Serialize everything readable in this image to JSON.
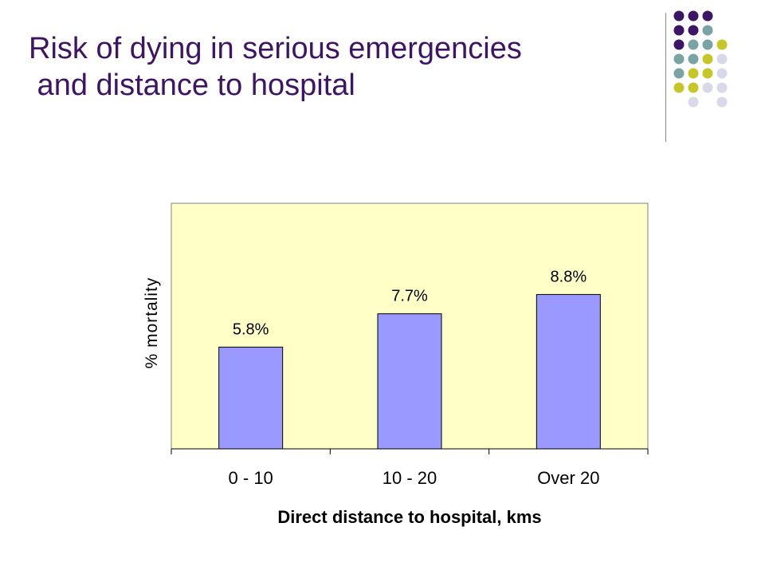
{
  "slide": {
    "title": "Risk of dying in serious emergencies\n and distance to hospital"
  },
  "decoration": {
    "dot_colors": [
      "#3d1466",
      "#7aa3a3",
      "#c6c628",
      "#d8d8e8"
    ]
  },
  "chart_data": {
    "type": "bar",
    "categories": [
      "0 - 10",
      "10 - 20",
      "Over 20"
    ],
    "values": [
      5.8,
      7.7,
      8.8
    ],
    "data_labels": [
      "5.8%",
      "7.7%",
      "8.8%"
    ],
    "title": "",
    "xlabel": "Direct distance to hospital, kms",
    "ylabel": "% mortality",
    "ylim": [
      0,
      14
    ],
    "grid": false,
    "legend": "none",
    "colors": {
      "plot_background": "#ffffc8",
      "bar_fill": "#9999ff",
      "bar_stroke": "#000000"
    }
  }
}
